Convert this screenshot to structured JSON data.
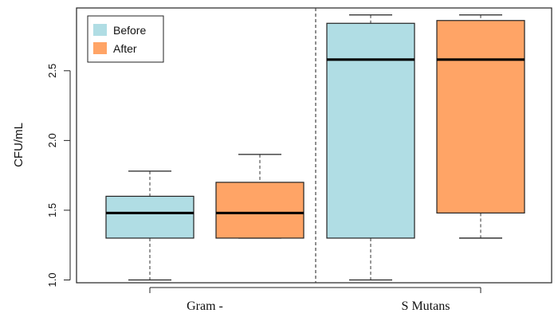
{
  "chart_data": {
    "type": "boxplot",
    "ylabel": "CFU/mL",
    "ylim": [
      0.98,
      2.95
    ],
    "y_ticks": [
      "1.0",
      "1.5",
      "2.0",
      "2.5"
    ],
    "y_tick_values": [
      1.0,
      1.5,
      2.0,
      2.5
    ],
    "groups": [
      "Gram -",
      "S Mutans"
    ],
    "legend": {
      "placement": "top-left",
      "entries": [
        {
          "label": "Before",
          "color": "#b0dde4"
        },
        {
          "label": "After",
          "color": "#ffa466"
        }
      ]
    },
    "group_separator": "dashed",
    "boxes": [
      {
        "group": "Gram -",
        "series": "Before",
        "color": "#b0dde4",
        "min": 1.0,
        "q1": 1.3,
        "median": 1.48,
        "q3": 1.6,
        "max": 1.78
      },
      {
        "group": "Gram -",
        "series": "After",
        "color": "#ffa466",
        "min": 1.3,
        "q1": 1.3,
        "median": 1.48,
        "q3": 1.7,
        "max": 1.9
      },
      {
        "group": "S Mutans",
        "series": "Before",
        "color": "#b0dde4",
        "min": 1.0,
        "q1": 1.3,
        "median": 2.58,
        "q3": 2.84,
        "max": 2.9
      },
      {
        "group": "S Mutans",
        "series": "After",
        "color": "#ffa466",
        "min": 1.3,
        "q1": 1.48,
        "median": 2.58,
        "q3": 2.86,
        "max": 2.9
      }
    ]
  }
}
